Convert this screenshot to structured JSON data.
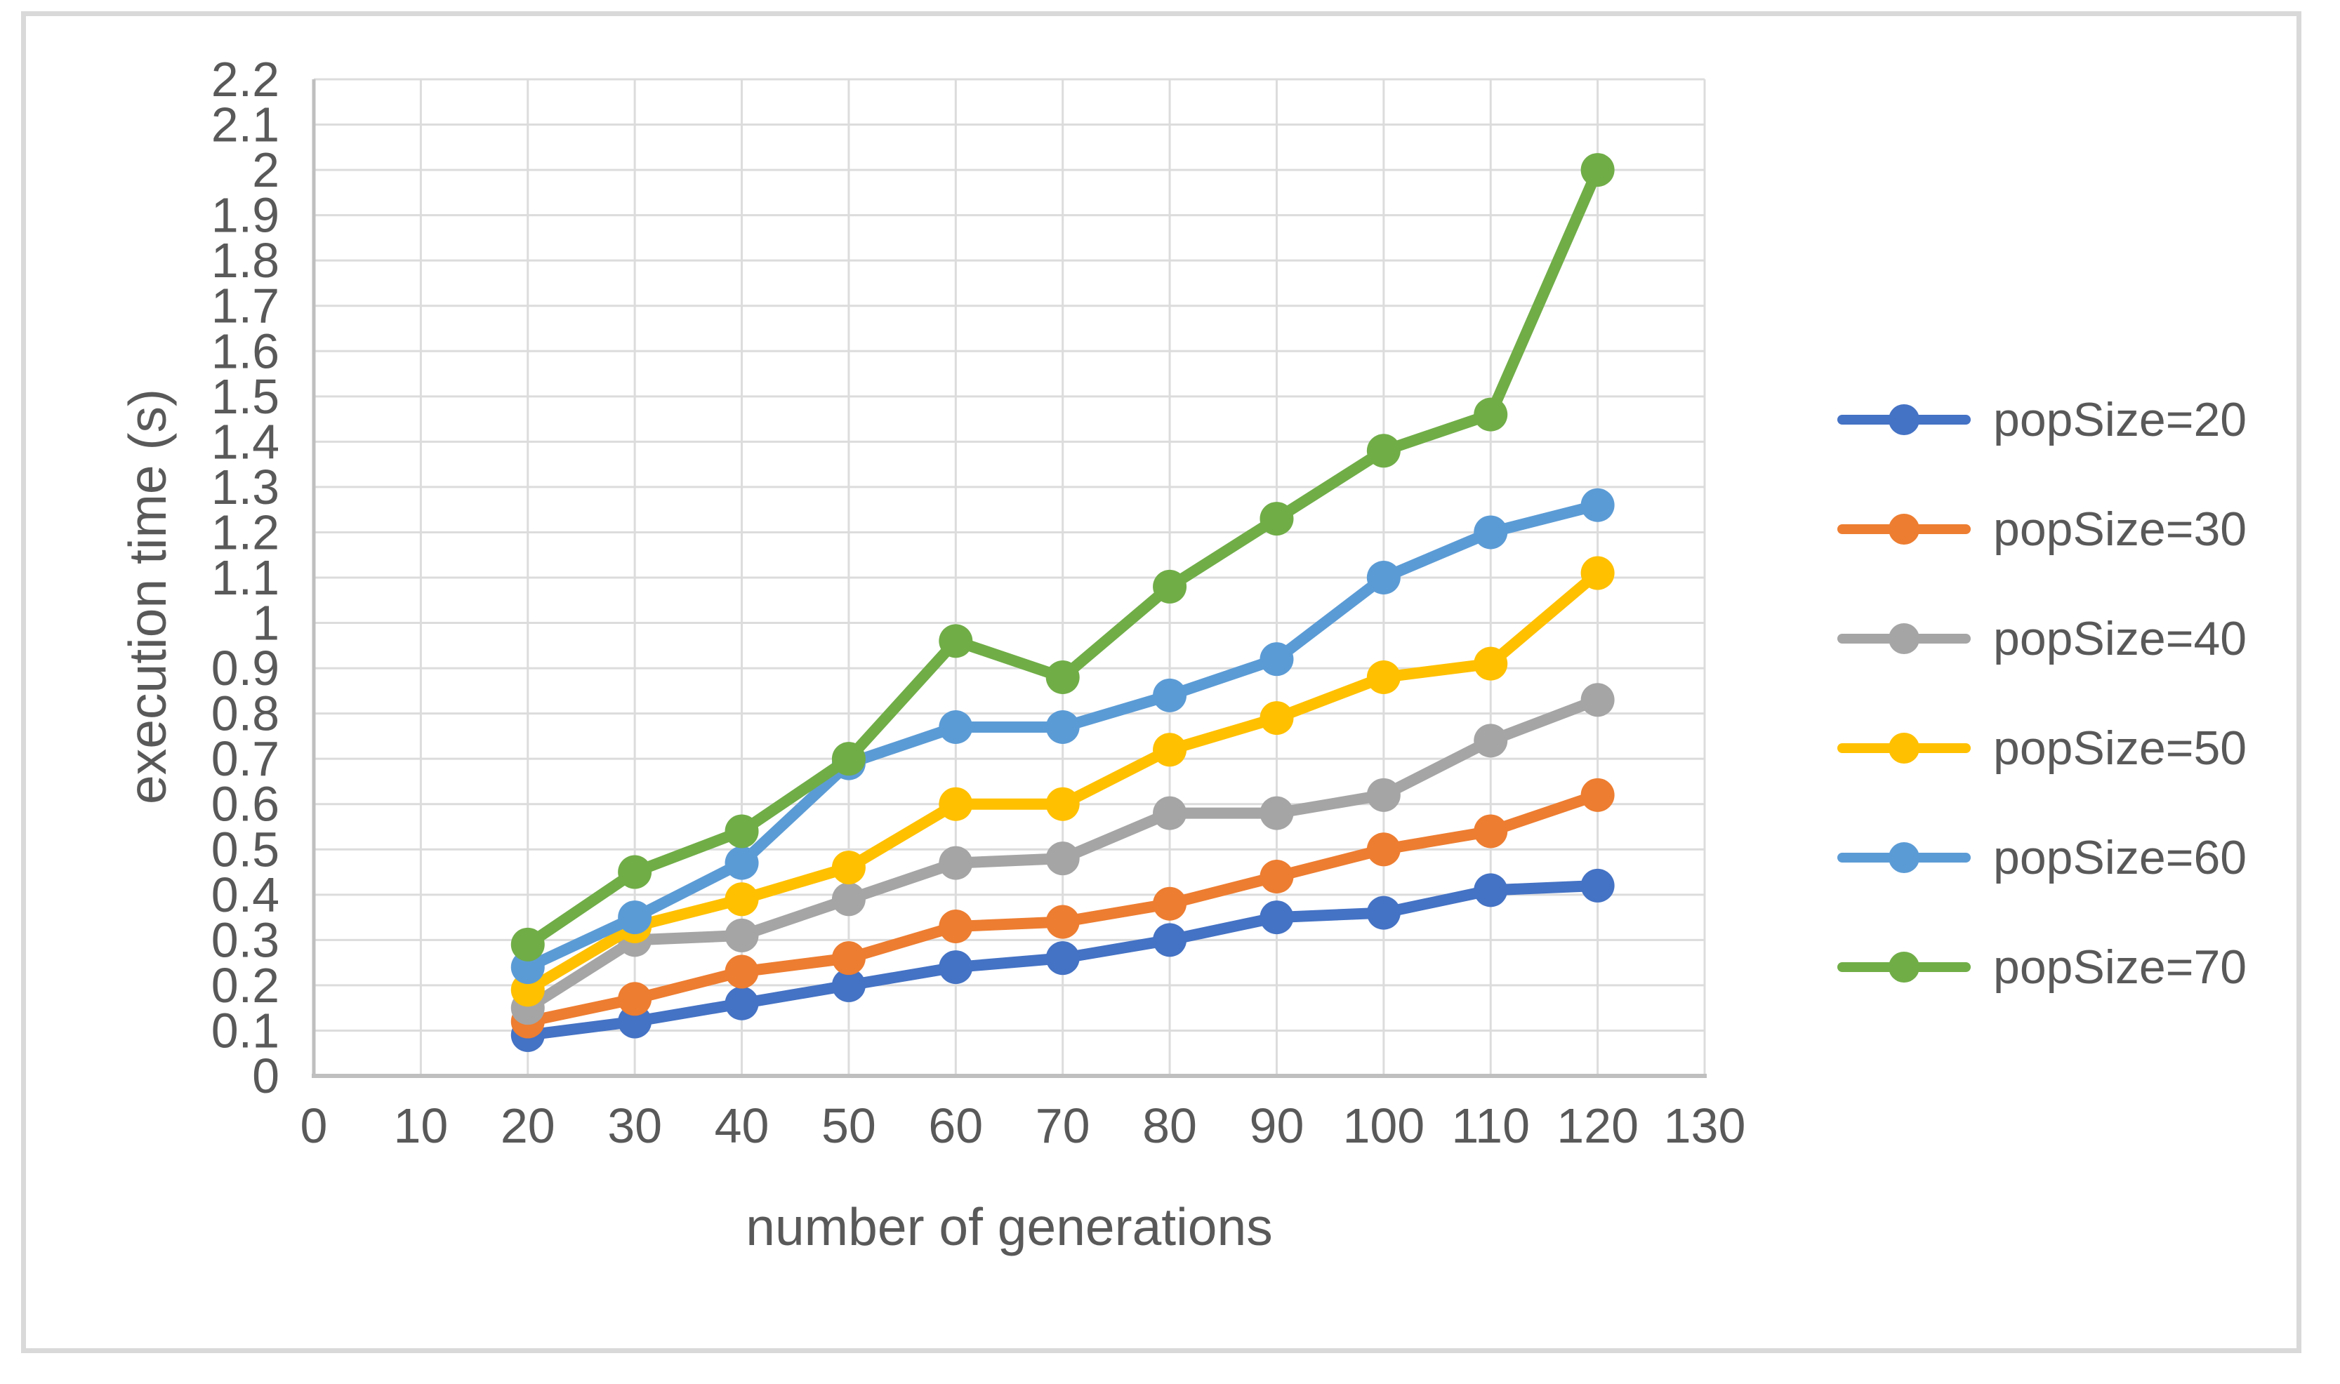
{
  "figure": {
    "background": "#ffffff",
    "border_color": "#d9d9d9"
  },
  "chart_data": {
    "type": "line",
    "title": "",
    "xlabel": "number of generations",
    "ylabel": "execution time (s)",
    "x": [
      20,
      30,
      40,
      50,
      60,
      70,
      80,
      90,
      100,
      110,
      120
    ],
    "xlim": [
      0,
      130
    ],
    "xtick_step": 10,
    "ylim": [
      0,
      2.2
    ],
    "ytick_step": 0.1,
    "grid": true,
    "legend_position": "right",
    "series": [
      {
        "name": "popSize=20",
        "color": "#4472C4",
        "values": [
          0.09,
          0.12,
          0.16,
          0.2,
          0.24,
          0.26,
          0.3,
          0.35,
          0.36,
          0.41,
          0.42
        ]
      },
      {
        "name": "popSize=30",
        "color": "#ED7D31",
        "values": [
          0.12,
          0.17,
          0.23,
          0.26,
          0.33,
          0.34,
          0.38,
          0.44,
          0.5,
          0.54,
          0.62
        ]
      },
      {
        "name": "popSize=40",
        "color": "#A5A5A5",
        "values": [
          0.15,
          0.3,
          0.31,
          0.39,
          0.47,
          0.48,
          0.58,
          0.58,
          0.62,
          0.74,
          0.83
        ]
      },
      {
        "name": "popSize=50",
        "color": "#FFC000",
        "values": [
          0.19,
          0.33,
          0.39,
          0.46,
          0.6,
          0.6,
          0.72,
          0.79,
          0.88,
          0.91,
          1.11
        ]
      },
      {
        "name": "popSize=60",
        "color": "#5B9BD5",
        "values": [
          0.24,
          0.35,
          0.47,
          0.69,
          0.77,
          0.77,
          0.84,
          0.92,
          1.1,
          1.2,
          1.26
        ]
      },
      {
        "name": "popSize=70",
        "color": "#70AD47",
        "values": [
          0.29,
          0.45,
          0.54,
          0.7,
          0.96,
          0.88,
          1.08,
          1.23,
          1.38,
          1.46,
          2.0
        ]
      }
    ],
    "colors": {
      "gridline": "#dcdcdc",
      "axis_line": "#bfbfbf",
      "tick_text": "#595959",
      "axis_title_text": "#595959",
      "legend_text": "#595959"
    }
  }
}
